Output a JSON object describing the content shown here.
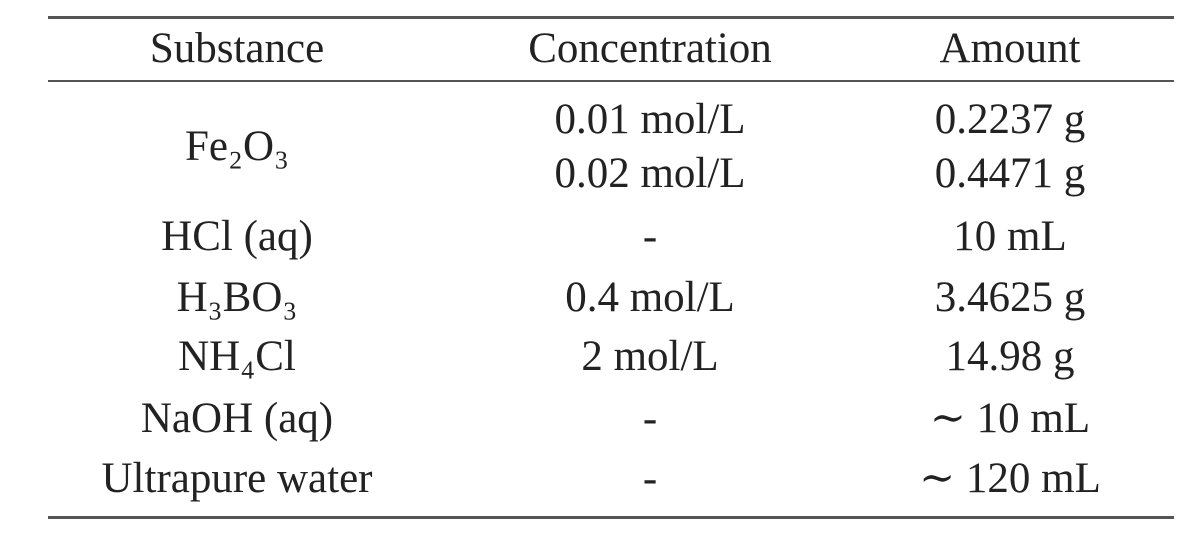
{
  "table": {
    "header": [
      "Substance",
      "Concentration",
      "Amount"
    ],
    "groups": [
      {
        "substance": "Fe₂O₃",
        "rows": [
          [
            "0.01 mol/L",
            "0.2237 g"
          ],
          [
            "0.02 mol/L",
            "0.4471 g"
          ]
        ]
      },
      {
        "substance": "HCl (aq)",
        "rows": [
          [
            "-",
            "10 mL"
          ]
        ]
      },
      {
        "substance": "H₃BO₃",
        "rows": [
          [
            "0.4 mol/L",
            "3.4625 g"
          ]
        ]
      },
      {
        "substance": "NH₄Cl",
        "rows": [
          [
            "2 mol/L",
            "14.98 g"
          ]
        ]
      },
      {
        "substance": "NaOH (aq)",
        "rows": [
          [
            "-",
            "∼ 10 mL"
          ]
        ]
      },
      {
        "substance": "Ultrapure water",
        "rows": [
          [
            "-",
            "∼ 120 mL"
          ]
        ]
      }
    ]
  }
}
